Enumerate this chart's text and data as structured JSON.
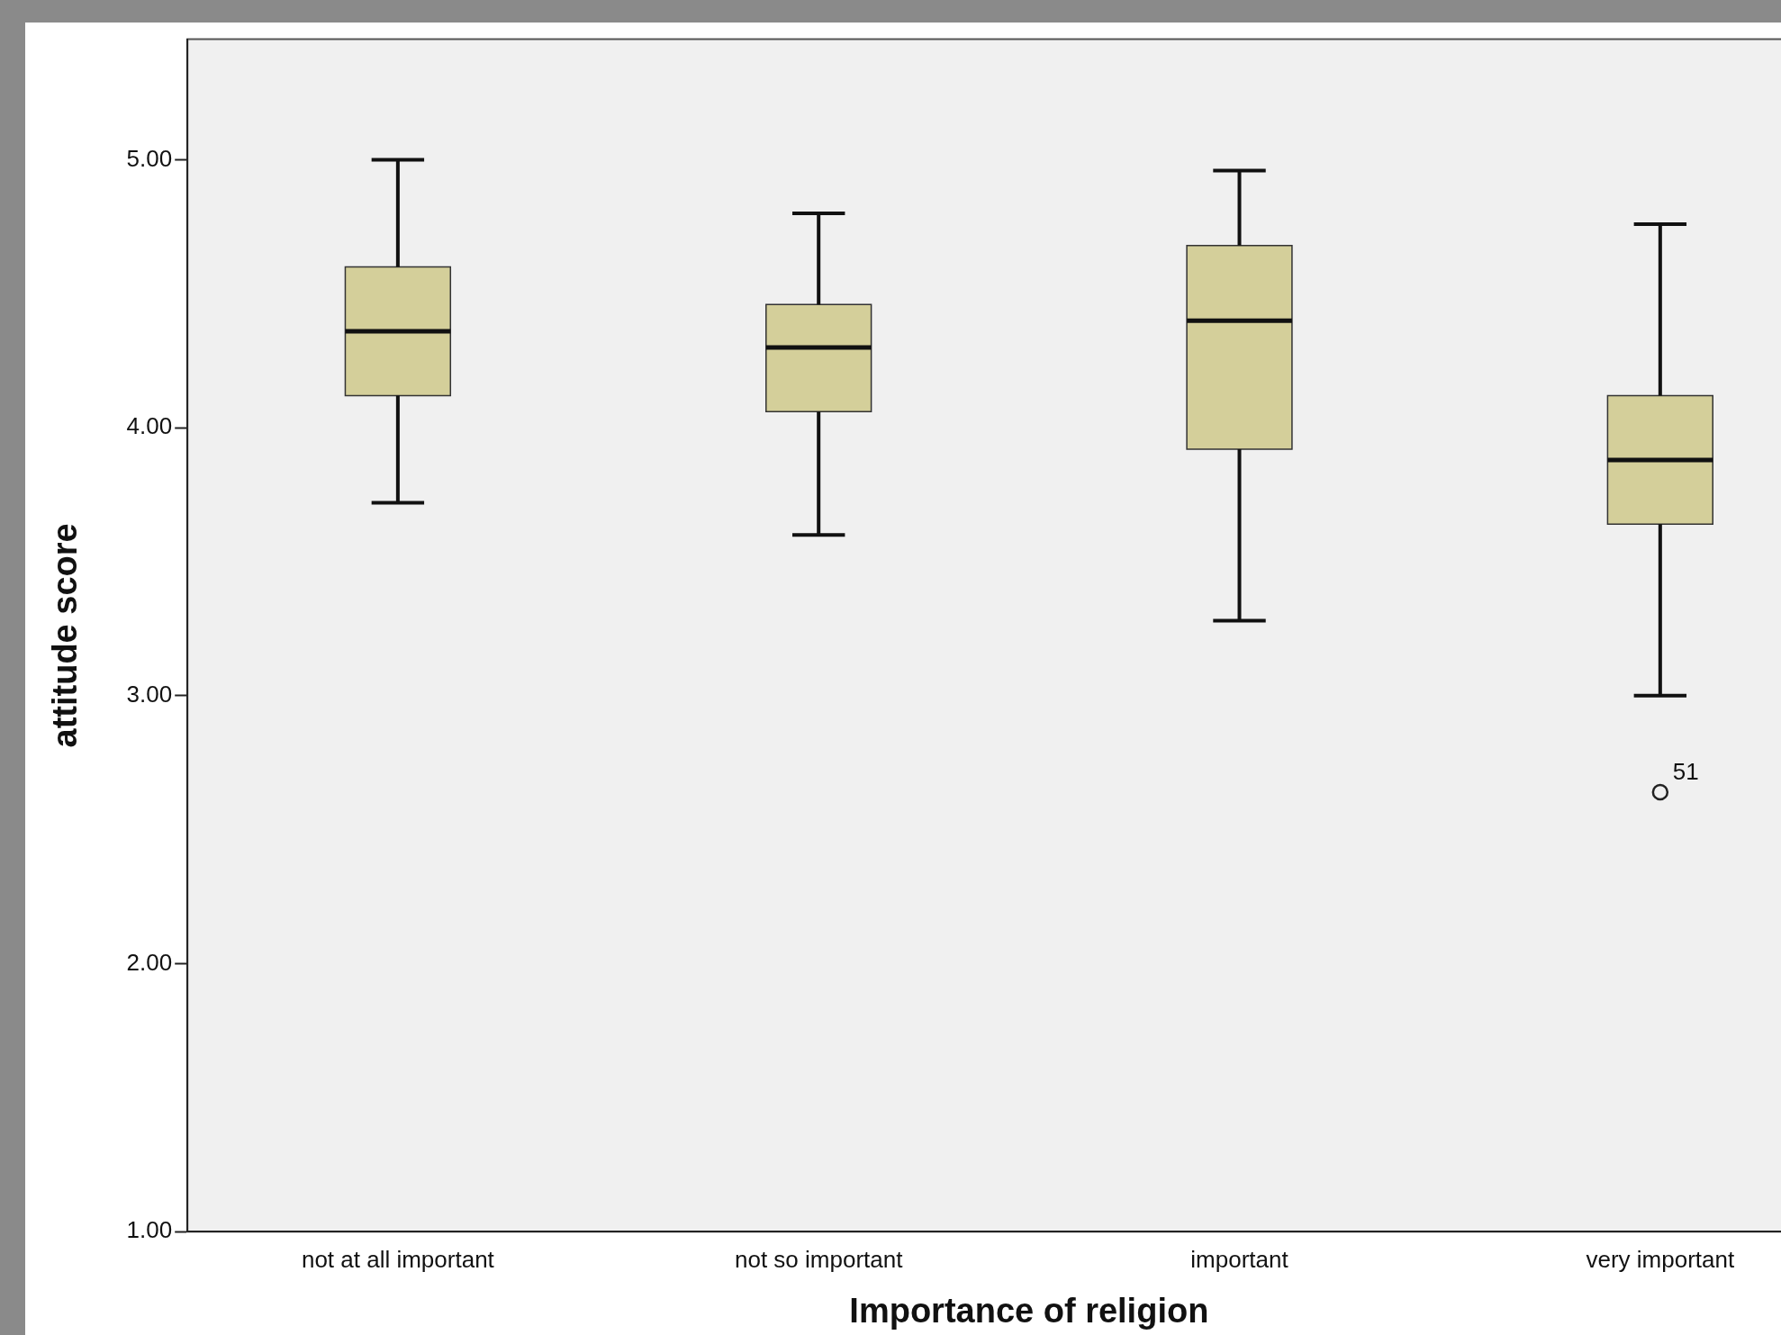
{
  "chart_data": {
    "type": "box",
    "xlabel": "Importance of religion",
    "ylabel": "attitude score",
    "categories": [
      "not at all important",
      "not so important",
      "important",
      "very important"
    ],
    "color": "#d4cf9a",
    "boxes": [
      {
        "low": 3.72,
        "q1": 4.12,
        "median": 4.36,
        "q3": 4.6,
        "high": 5.0
      },
      {
        "low": 3.6,
        "q1": 4.06,
        "median": 4.3,
        "q3": 4.46,
        "high": 4.8
      },
      {
        "low": 3.28,
        "q1": 3.92,
        "median": 4.4,
        "q3": 4.68,
        "high": 4.96
      },
      {
        "low": 3.0,
        "q1": 3.64,
        "median": 3.88,
        "q3": 4.12,
        "high": 4.76,
        "outliers": [
          2.64
        ]
      }
    ],
    "ylim": [
      1,
      5.45
    ],
    "yticks": [
      {
        "value": 1,
        "label": "1.00"
      },
      {
        "value": 2,
        "label": "2.00"
      },
      {
        "value": 3,
        "label": "3.00"
      },
      {
        "value": 4,
        "label": "4.00"
      },
      {
        "value": 5,
        "label": "5.00"
      }
    ],
    "annotations": [
      "51"
    ],
    "grid": false,
    "legend": false
  }
}
